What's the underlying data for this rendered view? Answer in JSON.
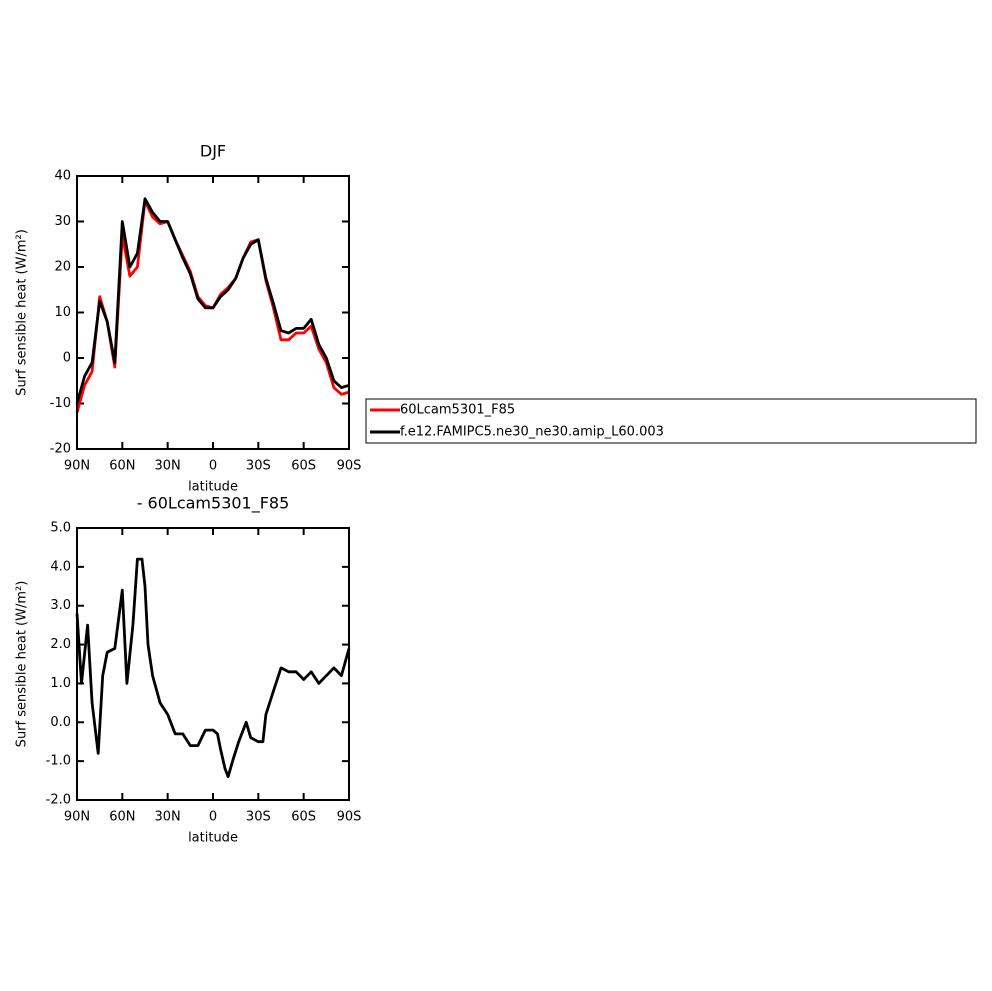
{
  "chart_data": [
    {
      "type": "line",
      "title": "DJF",
      "xlabel": "latitude",
      "ylabel": "Surf sensible heat (W/m²)",
      "x": [
        90,
        85,
        80,
        75,
        70,
        65,
        60,
        55,
        50,
        45,
        40,
        35,
        30,
        25,
        20,
        15,
        10,
        5,
        0,
        -5,
        -10,
        -15,
        -20,
        -25,
        -30,
        -35,
        -40,
        -45,
        -50,
        -55,
        -60,
        -65,
        -70,
        -75,
        -80,
        -85,
        -90
      ],
      "series": [
        {
          "name": "60Lcam5301_F85",
          "color": "#ff0000",
          "values": [
            -12,
            -6,
            -3,
            13.5,
            8,
            -2,
            27,
            18,
            20,
            34.5,
            31,
            29.5,
            30,
            26,
            22.5,
            19,
            13.5,
            11.5,
            11,
            14,
            15.5,
            17.5,
            22,
            25.5,
            26,
            17,
            11,
            4,
            4,
            5.5,
            5.5,
            7,
            2,
            -1,
            -6.5,
            -8,
            -7.5
          ]
        },
        {
          "name": "f.e12.FAMIPC5.ne30_ne30.amip_L60.003",
          "color": "#000000",
          "values": [
            -10,
            -4,
            -1,
            12.5,
            8,
            -1,
            30,
            20,
            23,
            35,
            32,
            30,
            30,
            26,
            22,
            18.5,
            13,
            11,
            11,
            13.5,
            15,
            17.5,
            22,
            25,
            26,
            17.5,
            12,
            6,
            5.5,
            6.5,
            6.5,
            8.5,
            3,
            0,
            -5,
            -6.5,
            -6
          ]
        }
      ],
      "xlim": [
        90,
        -90
      ],
      "xticks": [
        {
          "value": 90,
          "label": "90N"
        },
        {
          "value": 60,
          "label": "60N"
        },
        {
          "value": 30,
          "label": "30N"
        },
        0,
        {
          "value": -30,
          "label": "30S"
        },
        {
          "value": -60,
          "label": "60S"
        },
        {
          "value": -90,
          "label": "90S"
        }
      ],
      "ylim": [
        -20,
        40
      ],
      "yticks": [
        -20,
        -10,
        0,
        10,
        20,
        30,
        40
      ],
      "legend": "right"
    },
    {
      "type": "line",
      "title": "- 60Lcam5301_F85",
      "xlabel": "latitude",
      "ylabel": "Surf sensible heat (W/m²)",
      "x": [
        90,
        87,
        83,
        80,
        76,
        73,
        70,
        65,
        60,
        57,
        53,
        50,
        47,
        45,
        43,
        40,
        35,
        30,
        25,
        20,
        15,
        10,
        5,
        0,
        -3,
        -5,
        -8,
        -10,
        -13,
        -17,
        -22,
        -25,
        -30,
        -33,
        -35,
        -40,
        -45,
        -50,
        -55,
        -60,
        -65,
        -70,
        -75,
        -80,
        -85,
        -90
      ],
      "series": [
        {
          "color": "#000000",
          "values": [
            2.8,
            1,
            2.5,
            0.5,
            -0.8,
            1.2,
            1.8,
            1.9,
            3.4,
            1,
            2.5,
            4.2,
            4.2,
            3.5,
            2,
            1.2,
            0.5,
            0.2,
            -0.3,
            -0.3,
            -0.6,
            -0.6,
            -0.2,
            -0.2,
            -0.3,
            -0.7,
            -1.2,
            -1.4,
            -1,
            -0.5,
            0,
            -0.4,
            -0.5,
            -0.5,
            0.2,
            0.8,
            1.4,
            1.3,
            1.3,
            1.1,
            1.3,
            1,
            1.2,
            1.4,
            1.2,
            1.9
          ]
        }
      ],
      "xlim": [
        90,
        -90
      ],
      "xticks": [
        {
          "value": 90,
          "label": "90N"
        },
        {
          "value": 60,
          "label": "60N"
        },
        {
          "value": 30,
          "label": "30N"
        },
        0,
        {
          "value": -30,
          "label": "30S"
        },
        {
          "value": -60,
          "label": "60S"
        },
        {
          "value": -90,
          "label": "90S"
        }
      ],
      "ylim": [
        -2,
        5
      ],
      "yticks": [
        {
          "value": -2,
          "label": "-2.0"
        },
        {
          "value": -1,
          "label": "-1.0"
        },
        {
          "value": 0,
          "label": "0.0"
        },
        {
          "value": 1,
          "label": "1.0"
        },
        {
          "value": 2,
          "label": "2.0"
        },
        {
          "value": 3,
          "label": "3.0"
        },
        {
          "value": 4,
          "label": "4.0"
        },
        {
          "value": 5,
          "label": "5.0"
        }
      ]
    }
  ]
}
